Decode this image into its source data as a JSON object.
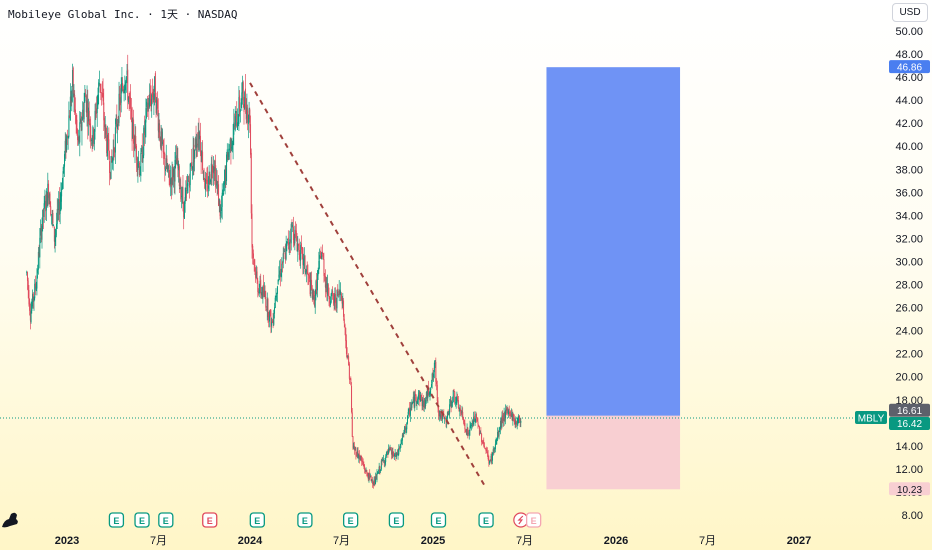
{
  "header": {
    "symbol_title": "Mobileye Global Inc. · 1天 · NASDAQ",
    "currency": "USD"
  },
  "chart_data": {
    "type": "candlestick",
    "symbol": "MBLY",
    "interval": "1天",
    "exchange": "NASDAQ",
    "y_ticks": [
      "50.00",
      "48.00",
      "46.00",
      "44.00",
      "42.00",
      "40.00",
      "38.00",
      "36.00",
      "34.00",
      "32.00",
      "30.00",
      "28.00",
      "26.00",
      "24.00",
      "22.00",
      "20.00",
      "18.00",
      "16.00",
      "14.00",
      "12.00",
      "10.00",
      "8.00"
    ],
    "y_tick_values": [
      50,
      48,
      46,
      44,
      42,
      40,
      38,
      36,
      34,
      32,
      30,
      28,
      26,
      24,
      22,
      20,
      18,
      16,
      14,
      12,
      10,
      8
    ],
    "ylim": [
      7.3,
      51.5
    ],
    "x_ticks": [
      {
        "label": "2023",
        "t": 2023.0,
        "bold": true
      },
      {
        "label": "7月",
        "t": 2023.5,
        "bold": false
      },
      {
        "label": "2024",
        "t": 2024.0,
        "bold": true
      },
      {
        "label": "7月",
        "t": 2024.5,
        "bold": false
      },
      {
        "label": "2025",
        "t": 2025.0,
        "bold": true
      },
      {
        "label": "7月",
        "t": 2025.5,
        "bold": false
      },
      {
        "label": "2026",
        "t": 2026.0,
        "bold": true
      },
      {
        "label": "7月",
        "t": 2026.5,
        "bold": false
      },
      {
        "label": "2027",
        "t": 2027.0,
        "bold": true
      }
    ],
    "xlim": [
      2022.62,
      2027.42
    ],
    "price_path": [
      {
        "t": 2022.78,
        "p": 29.0
      },
      {
        "t": 2022.8,
        "p": 25.5
      },
      {
        "t": 2022.83,
        "p": 28.0
      },
      {
        "t": 2022.86,
        "p": 33.0
      },
      {
        "t": 2022.9,
        "p": 36.5
      },
      {
        "t": 2022.93,
        "p": 32.0
      },
      {
        "t": 2022.96,
        "p": 35.0
      },
      {
        "t": 2023.0,
        "p": 41.0
      },
      {
        "t": 2023.03,
        "p": 45.5
      },
      {
        "t": 2023.06,
        "p": 40.0
      },
      {
        "t": 2023.1,
        "p": 44.5
      },
      {
        "t": 2023.14,
        "p": 40.5
      },
      {
        "t": 2023.18,
        "p": 46.0
      },
      {
        "t": 2023.21,
        "p": 41.0
      },
      {
        "t": 2023.24,
        "p": 38.0
      },
      {
        "t": 2023.28,
        "p": 43.0
      },
      {
        "t": 2023.32,
        "p": 46.5
      },
      {
        "t": 2023.36,
        "p": 41.0
      },
      {
        "t": 2023.4,
        "p": 38.0
      },
      {
        "t": 2023.44,
        "p": 43.5
      },
      {
        "t": 2023.48,
        "p": 45.0
      },
      {
        "t": 2023.52,
        "p": 39.5
      },
      {
        "t": 2023.56,
        "p": 37.0
      },
      {
        "t": 2023.6,
        "p": 38.5
      },
      {
        "t": 2023.64,
        "p": 34.5
      },
      {
        "t": 2023.68,
        "p": 38.5
      },
      {
        "t": 2023.72,
        "p": 41.5
      },
      {
        "t": 2023.76,
        "p": 36.0
      },
      {
        "t": 2023.8,
        "p": 39.0
      },
      {
        "t": 2023.84,
        "p": 34.0
      },
      {
        "t": 2023.88,
        "p": 39.5
      },
      {
        "t": 2023.92,
        "p": 42.0
      },
      {
        "t": 2023.96,
        "p": 44.5
      },
      {
        "t": 2024.0,
        "p": 42.5
      },
      {
        "t": 2024.01,
        "p": 31.5
      },
      {
        "t": 2024.04,
        "p": 28.0
      },
      {
        "t": 2024.08,
        "p": 27.0
      },
      {
        "t": 2024.12,
        "p": 24.5
      },
      {
        "t": 2024.15,
        "p": 28.5
      },
      {
        "t": 2024.19,
        "p": 30.5
      },
      {
        "t": 2024.23,
        "p": 33.0
      },
      {
        "t": 2024.27,
        "p": 31.0
      },
      {
        "t": 2024.31,
        "p": 29.0
      },
      {
        "t": 2024.35,
        "p": 26.5
      },
      {
        "t": 2024.39,
        "p": 31.0
      },
      {
        "t": 2024.42,
        "p": 27.5
      },
      {
        "t": 2024.46,
        "p": 26.5
      },
      {
        "t": 2024.5,
        "p": 27.5
      },
      {
        "t": 2024.53,
        "p": 22.0
      },
      {
        "t": 2024.55,
        "p": 19.5
      },
      {
        "t": 2024.56,
        "p": 14.0
      },
      {
        "t": 2024.6,
        "p": 13.0
      },
      {
        "t": 2024.64,
        "p": 11.5
      },
      {
        "t": 2024.68,
        "p": 10.8
      },
      {
        "t": 2024.72,
        "p": 12.5
      },
      {
        "t": 2024.76,
        "p": 13.5
      },
      {
        "t": 2024.8,
        "p": 13.0
      },
      {
        "t": 2024.84,
        "p": 15.0
      },
      {
        "t": 2024.88,
        "p": 17.5
      },
      {
        "t": 2024.92,
        "p": 18.5
      },
      {
        "t": 2024.95,
        "p": 17.5
      },
      {
        "t": 2025.0,
        "p": 20.0
      },
      {
        "t": 2025.01,
        "p": 21.0
      },
      {
        "t": 2025.03,
        "p": 17.0
      },
      {
        "t": 2025.07,
        "p": 16.0
      },
      {
        "t": 2025.11,
        "p": 18.5
      },
      {
        "t": 2025.15,
        "p": 17.0
      },
      {
        "t": 2025.19,
        "p": 15.0
      },
      {
        "t": 2025.23,
        "p": 16.5
      },
      {
        "t": 2025.27,
        "p": 14.5
      },
      {
        "t": 2025.31,
        "p": 12.5
      },
      {
        "t": 2025.34,
        "p": 14.0
      },
      {
        "t": 2025.38,
        "p": 16.5
      },
      {
        "t": 2025.42,
        "p": 17.0
      },
      {
        "t": 2025.45,
        "p": 16.0
      },
      {
        "t": 2025.48,
        "p": 16.42
      }
    ],
    "last_price": 16.42,
    "price_line_color": "#089981",
    "trend_line": {
      "from": {
        "t": 2024.0,
        "p": 45.5
      },
      "to": {
        "t": 2025.28,
        "p": 10.6
      },
      "style": "dashed",
      "color": "#a0403c"
    },
    "position_tool": {
      "type": "long",
      "x_range": [
        2025.62,
        2026.35
      ],
      "entry": 16.61,
      "target": 46.86,
      "stop": 10.23,
      "profit_color": "#6f93f5",
      "loss_color": "#f8cfd2"
    },
    "events": [
      {
        "t": 2023.27,
        "type": "earnings",
        "color": "#089981"
      },
      {
        "t": 2023.41,
        "type": "earnings",
        "color": "#089981"
      },
      {
        "t": 2023.54,
        "type": "earnings",
        "color": "#089981"
      },
      {
        "t": 2023.78,
        "type": "earnings",
        "color": "#e04a5c"
      },
      {
        "t": 2024.04,
        "type": "earnings",
        "color": "#089981"
      },
      {
        "t": 2024.3,
        "type": "earnings",
        "color": "#089981"
      },
      {
        "t": 2024.55,
        "type": "earnings",
        "color": "#089981"
      },
      {
        "t": 2024.8,
        "type": "earnings",
        "color": "#089981"
      },
      {
        "t": 2025.03,
        "type": "earnings",
        "color": "#089981"
      },
      {
        "t": 2025.29,
        "type": "earnings",
        "color": "#089981"
      },
      {
        "t": 2025.48,
        "type": "split",
        "color": "#e04a5c"
      },
      {
        "t": 2025.55,
        "type": "earnings",
        "color": "#f4a6b2"
      }
    ],
    "event_letter": "E",
    "price_labels": [
      {
        "text": "46.86",
        "value": 46.86,
        "bg": "#4a7ef0",
        "fg": "#ffffff"
      },
      {
        "text": "16.61",
        "value": 16.61,
        "bg": "#5d606b",
        "fg": "#ffffff"
      },
      {
        "text": "16.42",
        "value": 16.42,
        "bg": "#089981",
        "fg": "#ffffff"
      },
      {
        "text": "10.23",
        "value": 10.23,
        "bg": "#f8cfd2",
        "fg": "#131722"
      }
    ],
    "symbol_tag": {
      "text": "MBLY",
      "bg": "#089981",
      "fg": "#ffffff"
    },
    "up_color": "#089981",
    "down_color": "#e04a5c"
  }
}
